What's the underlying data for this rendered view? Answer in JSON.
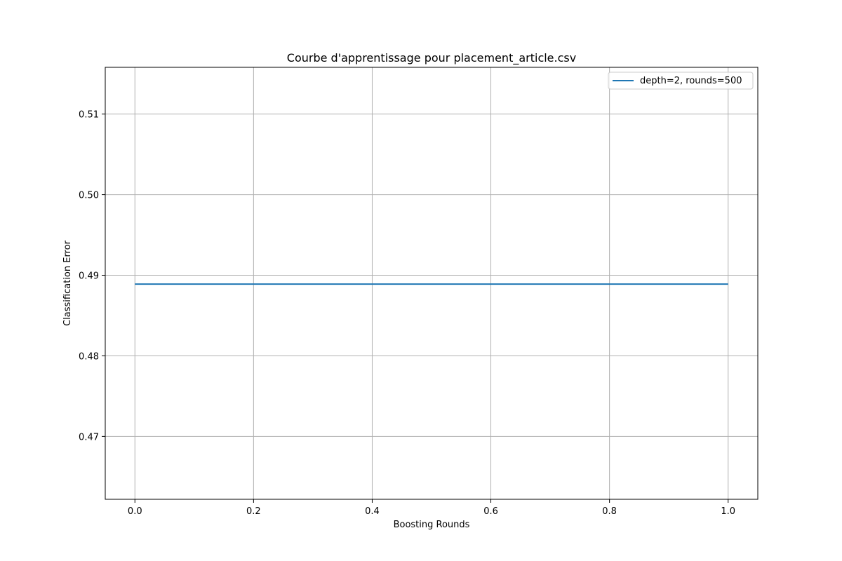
{
  "chart_data": {
    "type": "line",
    "title": "Courbe d'apprentissage pour placement_article.csv",
    "xlabel": "Boosting Rounds",
    "ylabel": "Classification Error",
    "xlim": [
      -0.05,
      1.05
    ],
    "ylim": [
      0.4622,
      0.5158
    ],
    "xticks": [
      0.0,
      0.2,
      0.4,
      0.6,
      0.8,
      1.0
    ],
    "xtick_labels": [
      "0.0",
      "0.2",
      "0.4",
      "0.6",
      "0.8",
      "1.0"
    ],
    "yticks": [
      0.47,
      0.48,
      0.49,
      0.5,
      0.51
    ],
    "ytick_labels": [
      "0.47",
      "0.48",
      "0.49",
      "0.50",
      "0.51"
    ],
    "grid": true,
    "legend_position": "top-right",
    "series": [
      {
        "name": "depth=2, rounds=500",
        "color": "#1f77b4",
        "x": [
          0.0,
          1.0
        ],
        "y": [
          0.4889,
          0.4889
        ]
      }
    ]
  }
}
